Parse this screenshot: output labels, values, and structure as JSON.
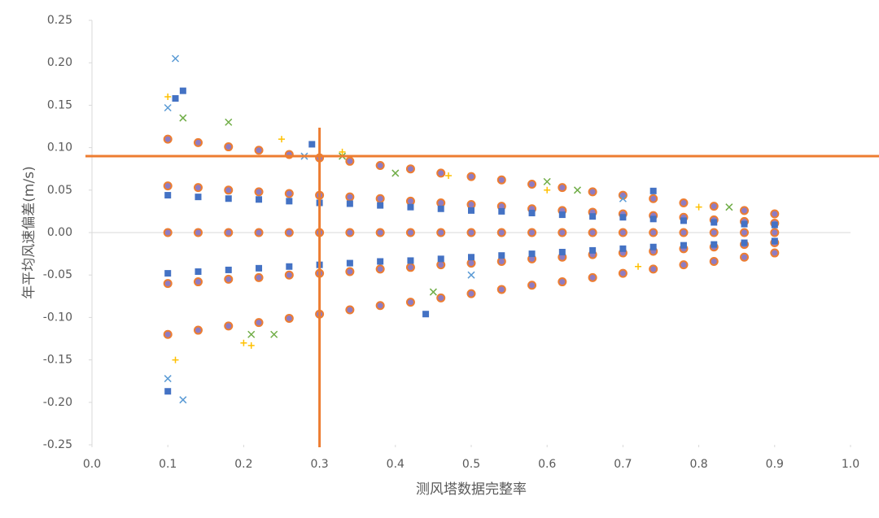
{
  "chart_data": {
    "type": "scatter",
    "x_label": "测风塔数据完整率",
    "y_label": "年平均风速偏差(m/s)",
    "xlim": [
      0,
      1
    ],
    "ylim": [
      -0.25,
      0.25
    ],
    "xticks": [
      {
        "value": 0,
        "label": "0.0"
      },
      {
        "value": 0.1,
        "label": "0.1"
      },
      {
        "value": 0.2,
        "label": "0.2"
      },
      {
        "value": 0.3,
        "label": "0.3"
      },
      {
        "value": 0.4,
        "label": "0.4"
      },
      {
        "value": 0.5,
        "label": "0.5"
      },
      {
        "value": 0.6,
        "label": "0.6"
      },
      {
        "value": 0.7,
        "label": "0.7"
      },
      {
        "value": 0.8,
        "label": "0.8"
      },
      {
        "value": 0.9,
        "label": "0.9"
      },
      {
        "value": 1,
        "label": "1.0"
      }
    ],
    "yticks": [
      {
        "value": -0.25,
        "label": "-0.25"
      },
      {
        "value": -0.2,
        "label": "-0.20"
      },
      {
        "value": -0.15,
        "label": "-0.15"
      },
      {
        "value": -0.1,
        "label": "-0.10"
      },
      {
        "value": -0.05,
        "label": "-0.05"
      },
      {
        "value": 0,
        "label": "0.00"
      },
      {
        "value": 0.05,
        "label": "0.05"
      },
      {
        "value": 0.1,
        "label": "0.10"
      },
      {
        "value": 0.15,
        "label": "0.15"
      },
      {
        "value": 0.2,
        "label": "0.20"
      },
      {
        "value": 0.25,
        "label": "0.25"
      }
    ],
    "zero_line": true,
    "reference_lines": {
      "color": "#ed7d31",
      "y": 0.09,
      "x": 0.3
    },
    "series": [
      {
        "marker": "circle",
        "color": "#ed7d31",
        "x": [
          0.1,
          0.14,
          0.18,
          0.22,
          0.26,
          0.3,
          0.34,
          0.38,
          0.42,
          0.46,
          0.5,
          0.54,
          0.58,
          0.62,
          0.66,
          0.7,
          0.74,
          0.78,
          0.82,
          0.86,
          0.9,
          0.1,
          0.14,
          0.18,
          0.22,
          0.26,
          0.3,
          0.34,
          0.38,
          0.42,
          0.46,
          0.5,
          0.54,
          0.58,
          0.62,
          0.66,
          0.7,
          0.74,
          0.78,
          0.82,
          0.86,
          0.9,
          0.1,
          0.14,
          0.18,
          0.22,
          0.26,
          0.3,
          0.34,
          0.38,
          0.42,
          0.46,
          0.5,
          0.54,
          0.58,
          0.62,
          0.66,
          0.7,
          0.74,
          0.78,
          0.82,
          0.86,
          0.9,
          0.1,
          0.14,
          0.18,
          0.22,
          0.26,
          0.3,
          0.34,
          0.38,
          0.42,
          0.46,
          0.5,
          0.54,
          0.58,
          0.62,
          0.66,
          0.7,
          0.74,
          0.78,
          0.82,
          0.86,
          0.9,
          0.1,
          0.14,
          0.18,
          0.22,
          0.26,
          0.3,
          0.34,
          0.38,
          0.42,
          0.46,
          0.5,
          0.54,
          0.58,
          0.62,
          0.66,
          0.7,
          0.74,
          0.78,
          0.82,
          0.86,
          0.9
        ],
        "values": [
          0.11,
          0.106,
          0.101,
          0.097,
          0.092,
          0.088,
          0.084,
          0.079,
          0.075,
          0.07,
          0.066,
          0.062,
          0.057,
          0.053,
          0.048,
          0.044,
          0.04,
          0.035,
          0.031,
          0.026,
          0.022,
          0.055,
          0.053,
          0.05,
          0.048,
          0.046,
          0.044,
          0.042,
          0.04,
          0.037,
          0.035,
          0.033,
          0.031,
          0.028,
          0.026,
          0.024,
          0.022,
          0.02,
          0.018,
          0.015,
          0.013,
          0.011,
          0,
          0,
          0,
          0,
          0,
          0,
          0,
          0,
          0,
          0,
          0,
          0,
          0,
          0,
          0,
          0,
          0,
          0,
          0,
          0,
          0,
          -0.06,
          -0.058,
          -0.055,
          -0.053,
          -0.05,
          -0.048,
          -0.046,
          -0.043,
          -0.041,
          -0.038,
          -0.036,
          -0.034,
          -0.031,
          -0.029,
          -0.026,
          -0.024,
          -0.022,
          -0.019,
          -0.017,
          -0.014,
          -0.012,
          -0.12,
          -0.115,
          -0.11,
          -0.106,
          -0.101,
          -0.096,
          -0.091,
          -0.086,
          -0.082,
          -0.077,
          -0.072,
          -0.067,
          -0.062,
          -0.058,
          -0.053,
          -0.048,
          -0.043,
          -0.038,
          -0.034,
          -0.029,
          -0.024
        ]
      },
      {
        "marker": "square",
        "color": "#4472c4",
        "x": [
          0.1,
          0.14,
          0.18,
          0.22,
          0.26,
          0.3,
          0.34,
          0.38,
          0.42,
          0.46,
          0.5,
          0.54,
          0.58,
          0.62,
          0.66,
          0.7,
          0.74,
          0.78,
          0.82,
          0.86,
          0.9,
          0.1,
          0.14,
          0.18,
          0.22,
          0.26,
          0.3,
          0.34,
          0.38,
          0.42,
          0.46,
          0.5,
          0.54,
          0.58,
          0.62,
          0.66,
          0.7,
          0.74,
          0.78,
          0.82,
          0.86,
          0.9,
          0.11,
          0.12,
          0.1,
          0.44,
          0.74,
          0.29
        ],
        "values": [
          0.044,
          0.042,
          0.04,
          0.039,
          0.037,
          0.035,
          0.034,
          0.032,
          0.03,
          0.028,
          0.026,
          0.025,
          0.023,
          0.021,
          0.019,
          0.018,
          0.016,
          0.014,
          0.012,
          0.01,
          0.009,
          -0.048,
          -0.046,
          -0.044,
          -0.042,
          -0.04,
          -0.038,
          -0.036,
          -0.034,
          -0.033,
          -0.031,
          -0.029,
          -0.027,
          -0.025,
          -0.023,
          -0.021,
          -0.019,
          -0.017,
          -0.015,
          -0.014,
          -0.012,
          -0.01,
          0.158,
          0.167,
          -0.187,
          -0.096,
          0.049,
          0.104
        ]
      },
      {
        "marker": "plus",
        "color": "#ffc000",
        "x": [
          0.1,
          0.2,
          0.21,
          0.33,
          0.47,
          0.6,
          0.72,
          0.8,
          0.11,
          0.25
        ],
        "values": [
          0.16,
          -0.13,
          -0.133,
          0.095,
          0.067,
          0.05,
          -0.04,
          0.03,
          -0.15,
          0.11
        ]
      },
      {
        "marker": "cross",
        "color": "#70ad47",
        "x": [
          0.18,
          0.21,
          0.24,
          0.4,
          0.45,
          0.6,
          0.64,
          0.84,
          0.12,
          0.33
        ],
        "values": [
          0.13,
          -0.12,
          -0.12,
          0.07,
          -0.07,
          0.06,
          0.05,
          0.03,
          0.135,
          0.09
        ]
      },
      {
        "marker": "cross",
        "color": "#5b9bd5",
        "x": [
          0.11,
          0.12,
          0.1,
          0.1,
          0.28,
          0.5,
          0.7
        ],
        "values": [
          0.205,
          -0.197,
          -0.172,
          0.147,
          0.09,
          -0.05,
          0.04
        ]
      }
    ]
  }
}
